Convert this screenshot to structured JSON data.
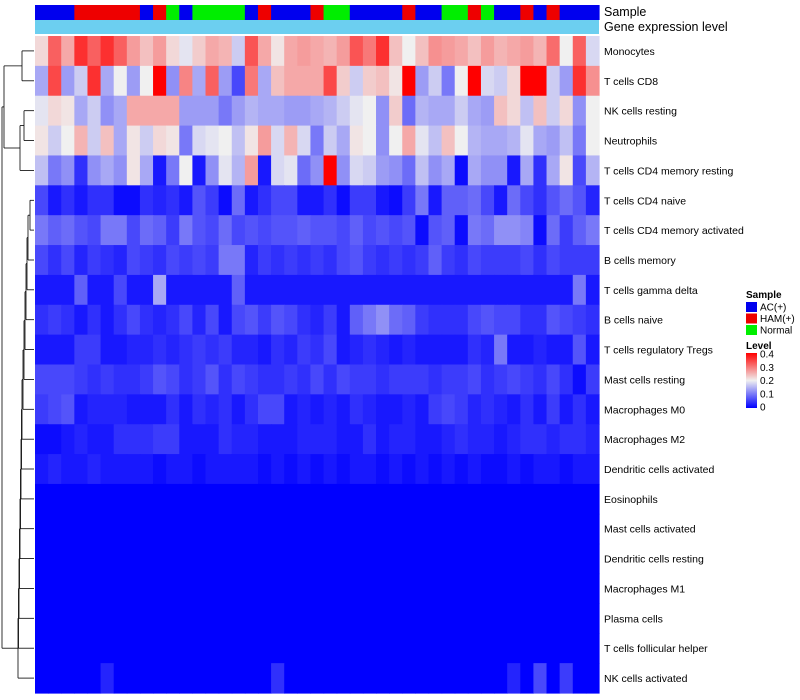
{
  "chart_data": {
    "type": "heatmap",
    "title": "",
    "annotation_tracks": [
      "Sample",
      "Gene expression level"
    ],
    "rows": [
      "Monocytes",
      "T cells CD8",
      "NK cells resting",
      "Neutrophils",
      "T cells CD4 memory resting",
      "T cells CD4 naive",
      "T cells CD4 memory activated",
      "B cells memory",
      "T cells gamma delta",
      "B cells naive",
      "T cells regulatory  Tregs",
      "Mast cells resting",
      "Macrophages M0",
      "Macrophages M2",
      "Dendritic cells activated",
      "Eosinophils",
      "Mast cells activated",
      "Dendritic cells resting",
      "Macrophages M1",
      "Plasma cells",
      "T cells follicular helper",
      "NK cells activated"
    ],
    "sample_groups": [
      "AC",
      "AC",
      "AC",
      "HAM",
      "HAM",
      "HAM",
      "HAM",
      "HAM",
      "AC",
      "HAM",
      "N",
      "AC",
      "N",
      "N",
      "N",
      "N",
      "AC",
      "HAM",
      "AC",
      "AC",
      "AC",
      "HAM",
      "N",
      "N",
      "AC",
      "AC",
      "AC",
      "AC",
      "HAM",
      "AC",
      "AC",
      "N",
      "N",
      "HAM",
      "N",
      "AC",
      "AC",
      "HAM",
      "AC",
      "HAM",
      "AC",
      "AC",
      "AC"
    ],
    "values": [
      [
        0.22,
        0.32,
        0.26,
        0.36,
        0.32,
        0.36,
        0.32,
        0.27,
        0.24,
        0.27,
        0.22,
        0.19,
        0.23,
        0.26,
        0.25,
        0.17,
        0.33,
        0.26,
        0.21,
        0.26,
        0.27,
        0.26,
        0.25,
        0.27,
        0.33,
        0.3,
        0.36,
        0.24,
        0.2,
        0.24,
        0.28,
        0.27,
        0.26,
        0.24,
        0.27,
        0.25,
        0.26,
        0.27,
        0.25,
        0.31,
        0.2,
        0.32,
        0.18
      ],
      [
        0.14,
        0.34,
        0.13,
        0.17,
        0.36,
        0.14,
        0.2,
        0.13,
        0.2,
        0.4,
        0.12,
        0.29,
        0.14,
        0.32,
        0.13,
        0.06,
        0.3,
        0.14,
        0.24,
        0.26,
        0.26,
        0.26,
        0.34,
        0.23,
        0.17,
        0.23,
        0.24,
        0.21,
        0.4,
        0.13,
        0.17,
        0.1,
        0.2,
        0.4,
        0.18,
        0.17,
        0.22,
        0.4,
        0.4,
        0.17,
        0.13,
        0.36,
        0.28
      ],
      [
        0.19,
        0.22,
        0.21,
        0.14,
        0.17,
        0.12,
        0.14,
        0.26,
        0.26,
        0.26,
        0.26,
        0.13,
        0.13,
        0.13,
        0.1,
        0.13,
        0.15,
        0.14,
        0.14,
        0.13,
        0.13,
        0.14,
        0.15,
        0.17,
        0.19,
        0.2,
        0.12,
        0.23,
        0.09,
        0.15,
        0.14,
        0.14,
        0.17,
        0.14,
        0.13,
        0.24,
        0.22,
        0.16,
        0.24,
        0.17,
        0.22,
        0.12,
        0.2
      ],
      [
        0.21,
        0.17,
        0.2,
        0.25,
        0.17,
        0.24,
        0.14,
        0.21,
        0.17,
        0.22,
        0.21,
        0.1,
        0.18,
        0.19,
        0.2,
        0.16,
        0.21,
        0.27,
        0.18,
        0.25,
        0.18,
        0.1,
        0.17,
        0.14,
        0.21,
        0.2,
        0.12,
        0.2,
        0.26,
        0.19,
        0.16,
        0.24,
        0.2,
        0.15,
        0.14,
        0.14,
        0.15,
        0.19,
        0.14,
        0.13,
        0.16,
        0.1,
        0.2
      ],
      [
        0.16,
        0.1,
        0.12,
        0.04,
        0.12,
        0.14,
        0.12,
        0.21,
        0.14,
        0.02,
        0.1,
        0.2,
        0.02,
        0.12,
        0.19,
        0.15,
        0.27,
        0.02,
        0.18,
        0.19,
        0.09,
        0.12,
        0.4,
        0.12,
        0.18,
        0.17,
        0.13,
        0.12,
        0.09,
        0.16,
        0.12,
        0.14,
        0.01,
        0.14,
        0.12,
        0.12,
        0.02,
        0.14,
        0.04,
        0.14,
        0.21,
        0.06,
        0.15
      ],
      [
        0.06,
        0.02,
        0.04,
        0.02,
        0.04,
        0.04,
        0.01,
        0.01,
        0.04,
        0.03,
        0.04,
        0.02,
        0.07,
        0.05,
        0.01,
        0.09,
        0.02,
        0.04,
        0.06,
        0.06,
        0.02,
        0.02,
        0.04,
        0.01,
        0.05,
        0.05,
        0.02,
        0.01,
        0.05,
        0.1,
        0.02,
        0.08,
        0.08,
        0.09,
        0.06,
        0.02,
        0.09,
        0.06,
        0.04,
        0.07,
        0.09,
        0.07,
        0.03
      ],
      [
        0.1,
        0.08,
        0.09,
        0.07,
        0.06,
        0.1,
        0.1,
        0.06,
        0.09,
        0.08,
        0.05,
        0.1,
        0.07,
        0.06,
        0.09,
        0.06,
        0.07,
        0.06,
        0.07,
        0.07,
        0.08,
        0.07,
        0.07,
        0.06,
        0.08,
        0.06,
        0.07,
        0.06,
        0.07,
        0.01,
        0.07,
        0.08,
        0.01,
        0.1,
        0.09,
        0.12,
        0.12,
        0.11,
        0.01,
        0.09,
        0.05,
        0.08,
        0.1
      ],
      [
        0.06,
        0.04,
        0.06,
        0.03,
        0.05,
        0.04,
        0.03,
        0.06,
        0.05,
        0.04,
        0.06,
        0.05,
        0.06,
        0.05,
        0.1,
        0.1,
        0.03,
        0.05,
        0.04,
        0.05,
        0.04,
        0.05,
        0.04,
        0.06,
        0.07,
        0.05,
        0.04,
        0.05,
        0.04,
        0.05,
        0.08,
        0.05,
        0.04,
        0.06,
        0.05,
        0.05,
        0.05,
        0.06,
        0.04,
        0.06,
        0.05,
        0.05,
        0.05
      ],
      [
        0.02,
        0.02,
        0.02,
        0.08,
        0.02,
        0.02,
        0.06,
        0.02,
        0.02,
        0.14,
        0.02,
        0.02,
        0.02,
        0.02,
        0.02,
        0.08,
        0.02,
        0.02,
        0.02,
        0.02,
        0.02,
        0.02,
        0.02,
        0.02,
        0.02,
        0.02,
        0.02,
        0.02,
        0.02,
        0.02,
        0.02,
        0.02,
        0.02,
        0.02,
        0.02,
        0.02,
        0.02,
        0.02,
        0.02,
        0.02,
        0.02,
        0.1,
        0.02
      ],
      [
        0.04,
        0.05,
        0.04,
        0.02,
        0.04,
        0.02,
        0.04,
        0.06,
        0.04,
        0.03,
        0.04,
        0.06,
        0.03,
        0.06,
        0.02,
        0.06,
        0.07,
        0.05,
        0.07,
        0.06,
        0.04,
        0.03,
        0.05,
        0.02,
        0.08,
        0.1,
        0.12,
        0.09,
        0.08,
        0.05,
        0.04,
        0.04,
        0.04,
        0.06,
        0.07,
        0.06,
        0.06,
        0.04,
        0.04,
        0.07,
        0.06,
        0.05,
        0.04
      ],
      [
        0.02,
        0.02,
        0.02,
        0.05,
        0.05,
        0.02,
        0.02,
        0.03,
        0.03,
        0.04,
        0.03,
        0.04,
        0.05,
        0.04,
        0.05,
        0.03,
        0.03,
        0.02,
        0.04,
        0.03,
        0.05,
        0.04,
        0.06,
        0.02,
        0.03,
        0.04,
        0.03,
        0.02,
        0.03,
        0.02,
        0.02,
        0.02,
        0.02,
        0.04,
        0.03,
        0.1,
        0.02,
        0.02,
        0.03,
        0.02,
        0.02,
        0.07,
        0.02
      ],
      [
        0.06,
        0.06,
        0.06,
        0.05,
        0.04,
        0.05,
        0.04,
        0.04,
        0.05,
        0.07,
        0.06,
        0.04,
        0.05,
        0.07,
        0.04,
        0.06,
        0.05,
        0.04,
        0.04,
        0.05,
        0.04,
        0.06,
        0.04,
        0.06,
        0.05,
        0.05,
        0.04,
        0.05,
        0.05,
        0.05,
        0.04,
        0.05,
        0.05,
        0.06,
        0.04,
        0.05,
        0.06,
        0.05,
        0.04,
        0.06,
        0.04,
        0.01,
        0.05
      ],
      [
        0.05,
        0.06,
        0.07,
        0.02,
        0.03,
        0.03,
        0.03,
        0.02,
        0.02,
        0.02,
        0.04,
        0.02,
        0.04,
        0.03,
        0.04,
        0.02,
        0.04,
        0.06,
        0.06,
        0.02,
        0.03,
        0.02,
        0.03,
        0.02,
        0.04,
        0.03,
        0.02,
        0.02,
        0.03,
        0.02,
        0.05,
        0.06,
        0.05,
        0.03,
        0.04,
        0.03,
        0.02,
        0.04,
        0.02,
        0.05,
        0.02,
        0.04,
        0.02
      ],
      [
        0.01,
        0.01,
        0.02,
        0.03,
        0.02,
        0.02,
        0.04,
        0.04,
        0.04,
        0.05,
        0.05,
        0.02,
        0.02,
        0.02,
        0.04,
        0.03,
        0.03,
        0.02,
        0.02,
        0.02,
        0.03,
        0.03,
        0.03,
        0.02,
        0.02,
        0.04,
        0.02,
        0.03,
        0.03,
        0.02,
        0.02,
        0.03,
        0.04,
        0.03,
        0.03,
        0.02,
        0.03,
        0.04,
        0.04,
        0.03,
        0.04,
        0.04,
        0.03
      ],
      [
        0.02,
        0.03,
        0.02,
        0.02,
        0.03,
        0.02,
        0.02,
        0.02,
        0.02,
        0.01,
        0.02,
        0.02,
        0.01,
        0.02,
        0.02,
        0.02,
        0.02,
        0.01,
        0.02,
        0.01,
        0.02,
        0.01,
        0.02,
        0.01,
        0.02,
        0.02,
        0.01,
        0.02,
        0.01,
        0.02,
        0.01,
        0.02,
        0.01,
        0.02,
        0.01,
        0.01,
        0.02,
        0.01,
        0.02,
        0.02,
        0.01,
        0.02,
        0.02
      ],
      [
        0,
        0,
        0,
        0,
        0,
        0,
        0,
        0,
        0,
        0,
        0,
        0,
        0,
        0,
        0,
        0,
        0,
        0,
        0,
        0,
        0,
        0,
        0,
        0,
        0,
        0,
        0,
        0,
        0,
        0,
        0,
        0,
        0,
        0,
        0,
        0,
        0,
        0,
        0,
        0,
        0,
        0,
        0
      ],
      [
        0,
        0,
        0,
        0,
        0,
        0,
        0,
        0,
        0,
        0,
        0,
        0,
        0,
        0,
        0,
        0,
        0,
        0,
        0,
        0,
        0,
        0,
        0,
        0,
        0,
        0,
        0,
        0,
        0,
        0,
        0,
        0,
        0,
        0,
        0,
        0,
        0,
        0,
        0,
        0,
        0,
        0,
        0
      ],
      [
        0,
        0,
        0,
        0,
        0,
        0,
        0,
        0,
        0,
        0,
        0,
        0,
        0,
        0,
        0,
        0,
        0,
        0,
        0,
        0,
        0,
        0,
        0,
        0,
        0,
        0,
        0,
        0,
        0,
        0,
        0,
        0,
        0,
        0,
        0,
        0,
        0,
        0,
        0,
        0,
        0,
        0,
        0
      ],
      [
        0,
        0,
        0,
        0,
        0,
        0,
        0,
        0,
        0,
        0,
        0,
        0,
        0,
        0,
        0,
        0,
        0,
        0,
        0,
        0,
        0,
        0,
        0,
        0,
        0,
        0,
        0,
        0,
        0,
        0,
        0,
        0,
        0,
        0,
        0,
        0,
        0,
        0,
        0,
        0,
        0,
        0,
        0
      ],
      [
        0,
        0,
        0,
        0,
        0,
        0,
        0,
        0,
        0,
        0,
        0,
        0,
        0,
        0,
        0,
        0,
        0,
        0,
        0,
        0,
        0,
        0,
        0,
        0,
        0,
        0,
        0,
        0,
        0,
        0,
        0,
        0,
        0,
        0,
        0,
        0,
        0,
        0,
        0,
        0,
        0,
        0,
        0
      ],
      [
        0,
        0,
        0,
        0,
        0,
        0,
        0,
        0,
        0,
        0,
        0,
        0,
        0,
        0,
        0,
        0,
        0,
        0,
        0,
        0,
        0,
        0,
        0,
        0,
        0,
        0,
        0,
        0,
        0,
        0,
        0,
        0,
        0,
        0,
        0,
        0,
        0,
        0,
        0,
        0,
        0,
        0,
        0
      ],
      [
        0,
        0,
        0,
        0,
        0,
        0.03,
        0,
        0,
        0,
        0,
        0,
        0,
        0,
        0,
        0,
        0,
        0,
        0,
        0.04,
        0,
        0,
        0,
        0,
        0,
        0,
        0,
        0,
        0,
        0,
        0,
        0,
        0,
        0,
        0,
        0,
        0,
        0.03,
        0,
        0.06,
        0,
        0.05,
        0,
        0
      ]
    ],
    "legend": {
      "sample": {
        "title": "Sample",
        "items": [
          {
            "key": "AC",
            "label": "AC(+)",
            "color": "#0000ee"
          },
          {
            "key": "HAM",
            "label": "HAM(+)",
            "color": "#ee0000"
          },
          {
            "key": "N",
            "label": "Normal",
            "color": "#00ee00"
          }
        ]
      },
      "level": {
        "title": "Level",
        "range": [
          0,
          0.4
        ],
        "ticks": [
          "0.4",
          "0.3",
          "0.2",
          "0.1",
          "0"
        ],
        "colors": {
          "low": "#0000ff",
          "mid": "#f0f0f0",
          "high": "#ff0000"
        }
      }
    },
    "expression_track_color": "#6ccff0",
    "dendrogram_color": "#000000"
  }
}
